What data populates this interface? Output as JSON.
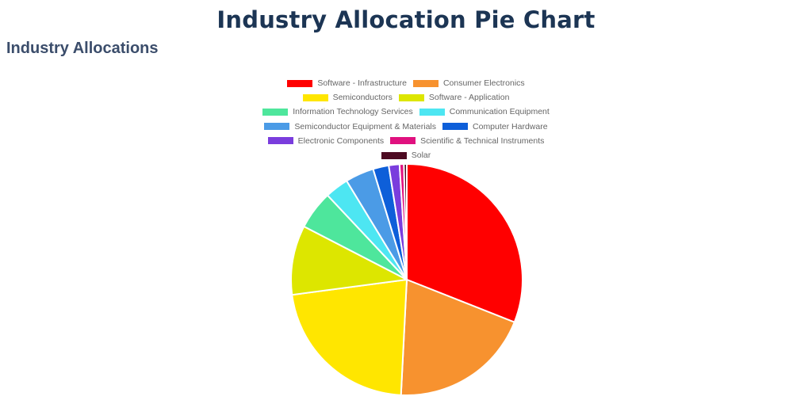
{
  "title": "Industry Allocation Pie Chart",
  "section_heading": "Industry Allocations",
  "chart_data": {
    "type": "pie",
    "legend_position": "top",
    "categories": [
      "Software - Infrastructure",
      "Consumer Electronics",
      "Semiconductors",
      "Software - Application",
      "Information Technology Services",
      "Communication Equipment",
      "Semiconductor Equipment & Materials",
      "Computer Hardware",
      "Electronic Components",
      "Scientific & Technical Instruments",
      "Solar"
    ],
    "values": [
      31,
      19.8,
      22.1,
      9.7,
      5.4,
      3.3,
      4.0,
      2.2,
      1.5,
      0.6,
      0.4
    ],
    "colors": [
      "#ff0000",
      "#f7922f",
      "#ffe600",
      "#dde600",
      "#4ee69c",
      "#4de6f2",
      "#4b9be6",
      "#0e5fd9",
      "#7a3ddd",
      "#e0117f",
      "#4d0a22"
    ]
  }
}
